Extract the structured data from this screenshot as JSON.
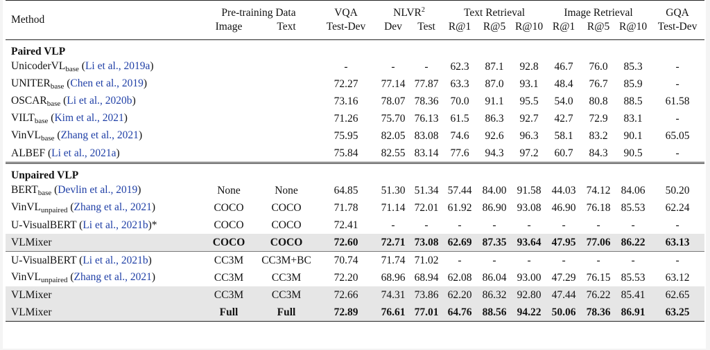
{
  "headers": {
    "method": "Method",
    "pretraining_group": "Pre-training Data",
    "image": "Image",
    "text": "Text",
    "vqa": "VQA",
    "vqa_sub": "Test-Dev",
    "nlvr": "NLVR",
    "nlvr_sup": "2",
    "nlvr_dev": "Dev",
    "nlvr_test": "Test",
    "text_retrieval": "Text Retrieval",
    "image_retrieval": "Image Retrieval",
    "r1": "R@1",
    "r5": "R@5",
    "r10": "R@10",
    "gqa": "GQA",
    "gqa_sub": "Test-Dev"
  },
  "sections": {
    "paired": "Paired VLP",
    "unpaired": "Unpaired VLP"
  },
  "rows": [
    {
      "name": "UnicoderVL",
      "sub": "base",
      "cite": "Li et al., 2019a",
      "suffix": "",
      "image": "",
      "text": "",
      "vqa": "-",
      "nlvr_dev": "-",
      "nlvr_test": "-",
      "tr1": "62.3",
      "tr5": "87.1",
      "tr10": "92.8",
      "ir1": "46.7",
      "ir5": "76.0",
      "ir10": "85.3",
      "gqa": "-"
    },
    {
      "name": "UNITER",
      "sub": "base",
      "cite": "Chen et al., 2019",
      "suffix": "",
      "image": "",
      "text": "",
      "vqa": "72.27",
      "nlvr_dev": "77.14",
      "nlvr_test": "77.87",
      "tr1": "63.3",
      "tr5": "87.0",
      "tr10": "93.1",
      "ir1": "48.4",
      "ir5": "76.7",
      "ir10": "85.9",
      "gqa": "-"
    },
    {
      "name": "OSCAR",
      "sub": "base",
      "cite": "Li et al., 2020b",
      "suffix": "",
      "image": "",
      "text": "",
      "vqa": "73.16",
      "nlvr_dev": "78.07",
      "nlvr_test": "78.36",
      "tr1": "70.0",
      "tr5": "91.1",
      "tr10": "95.5",
      "ir1": "54.0",
      "ir5": "80.8",
      "ir10": "88.5",
      "gqa": "61.58"
    },
    {
      "name": "VILT",
      "sub": "base",
      "cite": "Kim et al., 2021",
      "suffix": "",
      "image": "",
      "text": "",
      "vqa": "71.26",
      "nlvr_dev": "75.70",
      "nlvr_test": "76.13",
      "tr1": "61.5",
      "tr5": "86.3",
      "tr10": "92.7",
      "ir1": "42.7",
      "ir5": "72.9",
      "ir10": "83.1",
      "gqa": "-"
    },
    {
      "name": "VinVL",
      "sub": "base",
      "cite": "Zhang et al., 2021",
      "suffix": "",
      "image": "",
      "text": "",
      "vqa": "75.95",
      "nlvr_dev": "82.05",
      "nlvr_test": "83.08",
      "tr1": "74.6",
      "tr5": "92.6",
      "tr10": "96.3",
      "ir1": "58.1",
      "ir5": "83.2",
      "ir10": "90.1",
      "gqa": "65.05"
    },
    {
      "name": "ALBEF",
      "sub": "",
      "cite": "Li et al., 2021a",
      "suffix": "",
      "image": "",
      "text": "",
      "vqa": "75.84",
      "nlvr_dev": "82.55",
      "nlvr_test": "83.14",
      "tr1": "77.6",
      "tr5": "94.3",
      "tr10": "97.2",
      "ir1": "60.7",
      "ir5": "84.3",
      "ir10": "90.5",
      "gqa": "-"
    },
    {
      "name": "BERT",
      "sub": "base",
      "cite": "Devlin et al., 2019",
      "suffix": "",
      "image": "None",
      "text": "None",
      "vqa": "64.85",
      "nlvr_dev": "51.30",
      "nlvr_test": "51.34",
      "tr1": "57.44",
      "tr5": "84.00",
      "tr10": "91.58",
      "ir1": "44.03",
      "ir5": "74.12",
      "ir10": "84.06",
      "gqa": "50.20"
    },
    {
      "name": "VinVL",
      "sub": "unpaired",
      "cite": "Zhang et al., 2021",
      "suffix": "",
      "image": "COCO",
      "text": "COCO",
      "vqa": "71.78",
      "nlvr_dev": "71.14",
      "nlvr_test": "72.01",
      "tr1": "61.92",
      "tr5": "86.90",
      "tr10": "93.08",
      "ir1": "46.90",
      "ir5": "76.18",
      "ir10": "85.53",
      "gqa": "62.24"
    },
    {
      "name": "U-VisualBERT",
      "sub": "",
      "cite": "Li et al., 2021b",
      "suffix": "*",
      "image": "COCO",
      "text": "COCO",
      "vqa": "72.41",
      "nlvr_dev": "-",
      "nlvr_test": "-",
      "tr1": "-",
      "tr5": "-",
      "tr10": "-",
      "ir1": "-",
      "ir5": "-",
      "ir10": "-",
      "gqa": "-"
    },
    {
      "name": "VLMixer",
      "sub": "",
      "cite": "",
      "suffix": "",
      "image": "COCO",
      "text": "COCO",
      "vqa": "72.60",
      "nlvr_dev": "72.71",
      "nlvr_test": "73.08",
      "tr1": "62.69",
      "tr5": "87.35",
      "tr10": "93.64",
      "ir1": "47.95",
      "ir5": "77.06",
      "ir10": "86.22",
      "gqa": "63.13"
    },
    {
      "name": "U-VisualBERT",
      "sub": "",
      "cite": "Li et al., 2021b",
      "suffix": "",
      "image": "CC3M",
      "text": "CC3M+BC",
      "vqa": "70.74",
      "nlvr_dev": "71.74",
      "nlvr_test": "71.02",
      "tr1": "-",
      "tr5": "-",
      "tr10": "-",
      "ir1": "-",
      "ir5": "-",
      "ir10": "-",
      "gqa": "-"
    },
    {
      "name": "VinVL",
      "sub": "unpaired",
      "cite": "Zhang et al., 2021",
      "suffix": "",
      "image": "CC3M",
      "text": "CC3M",
      "vqa": "72.20",
      "nlvr_dev": "68.96",
      "nlvr_test": "68.94",
      "tr1": "62.08",
      "tr5": "86.04",
      "tr10": "93.00",
      "ir1": "47.29",
      "ir5": "76.15",
      "ir10": "85.53",
      "gqa": "63.12"
    },
    {
      "name": "VLMixer",
      "sub": "",
      "cite": "",
      "suffix": "",
      "image": "CC3M",
      "text": "CC3M",
      "vqa": "72.66",
      "nlvr_dev": "74.31",
      "nlvr_test": "73.86",
      "tr1": "62.20",
      "tr5": "86.32",
      "tr10": "92.80",
      "ir1": "47.44",
      "ir5": "76.22",
      "ir10": "85.41",
      "gqa": "62.65"
    },
    {
      "name": "VLMixer",
      "sub": "",
      "cite": "",
      "suffix": "",
      "image": "Full",
      "text": "Full",
      "vqa": "72.89",
      "nlvr_dev": "76.61",
      "nlvr_test": "77.01",
      "tr1": "64.76",
      "tr5": "88.56",
      "tr10": "94.22",
      "ir1": "50.06",
      "ir5": "78.36",
      "ir10": "86.91",
      "gqa": "63.25"
    }
  ],
  "colors": {
    "citation": "#1f3fa6",
    "highlight_row": "#e6e6e6"
  }
}
